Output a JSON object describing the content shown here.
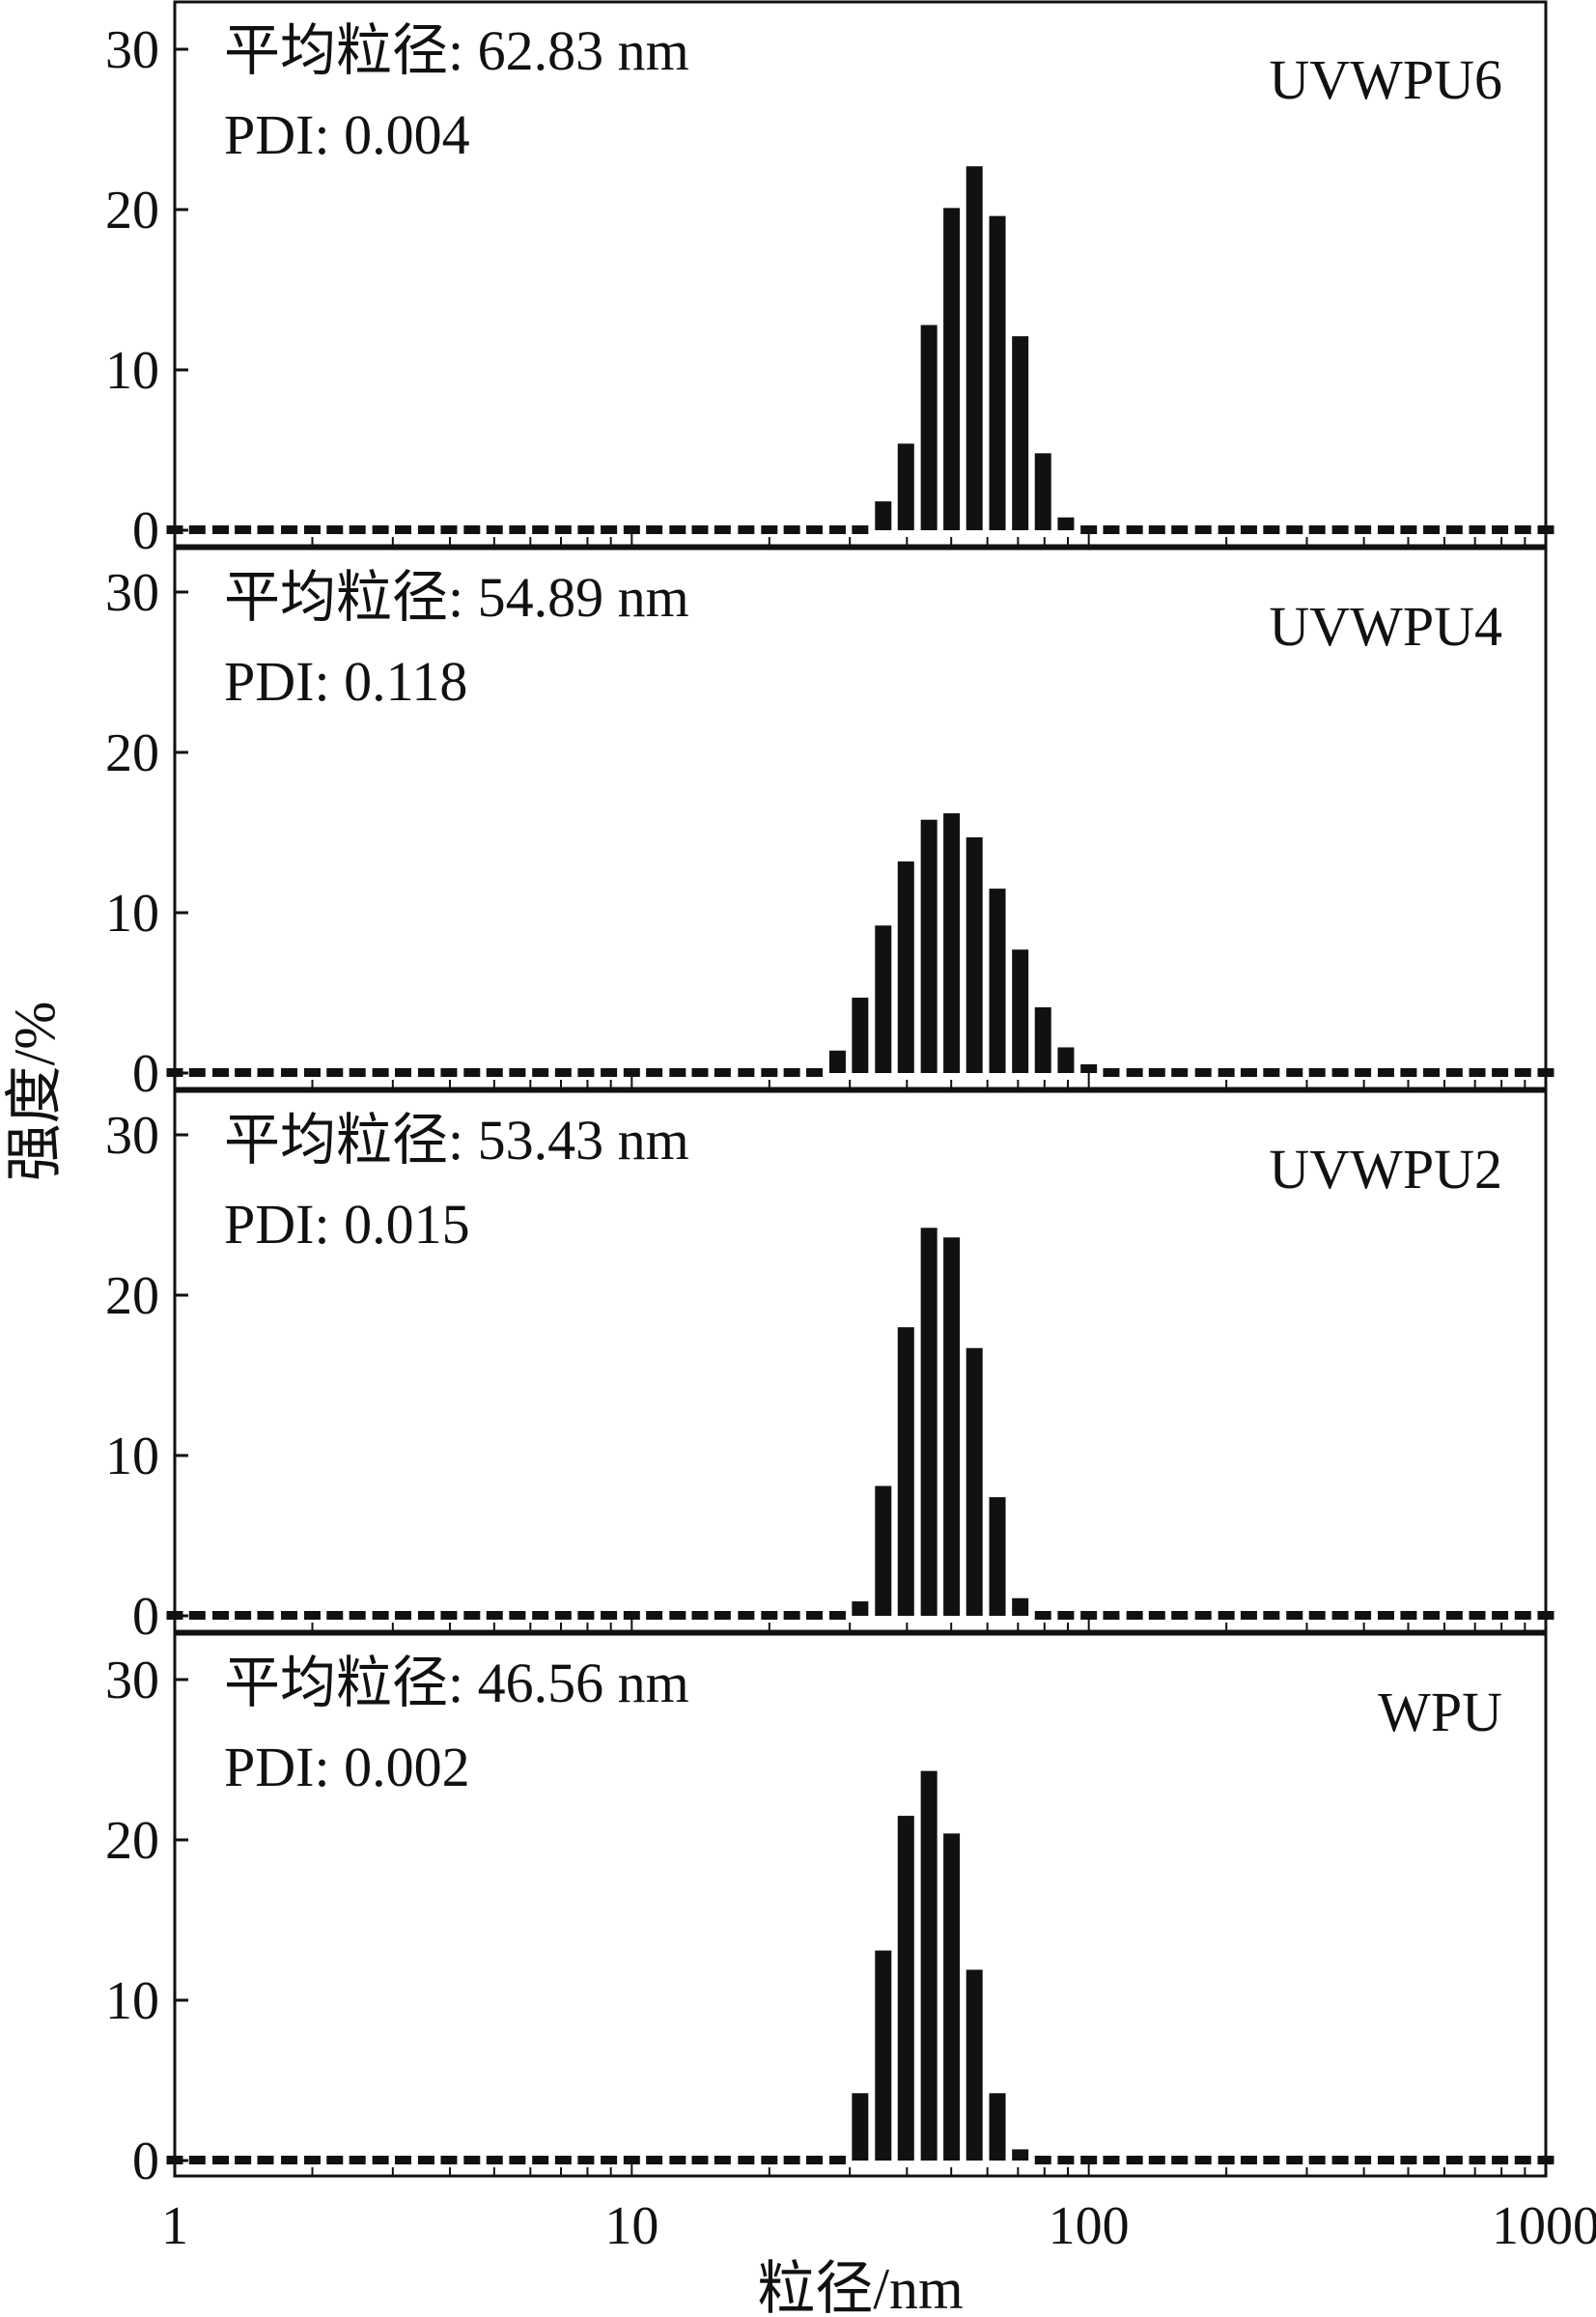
{
  "chart_data": {
    "type": "bar",
    "x_scale": "log",
    "xlim": [
      1,
      1000
    ],
    "x_ticks": [
      1,
      10,
      100,
      1000
    ],
    "x_tick_labels": [
      "1",
      "10",
      "100",
      "1000"
    ],
    "xlabel": "粒径/nm",
    "ylabel": "强度/%",
    "ylim": [
      0,
      30
    ],
    "y_ticks": [
      0,
      10,
      20,
      30
    ],
    "y_tick_labels": [
      "0",
      "10",
      "20",
      "30"
    ],
    "bar_color": "#111111",
    "x": [
      1.0,
      1.12,
      1.26,
      1.41,
      1.58,
      1.78,
      2.0,
      2.24,
      2.51,
      2.82,
      3.16,
      3.55,
      3.98,
      4.47,
      5.01,
      5.62,
      6.31,
      7.08,
      7.94,
      8.91,
      10.0,
      11.2,
      12.6,
      14.1,
      15.8,
      17.8,
      20.0,
      22.4,
      25.1,
      28.2,
      31.6,
      35.5,
      39.8,
      44.7,
      50.1,
      56.2,
      63.1,
      70.8,
      79.4,
      89.1,
      100,
      112,
      126,
      141,
      158,
      178,
      200,
      224,
      251,
      282,
      316,
      355,
      398,
      447,
      501,
      562,
      631,
      708,
      794,
      891,
      1000
    ],
    "panels": [
      {
        "label": "UVWPU6",
        "info": [
          "平均粒径: 62.83 nm",
          "PDI: 0.004"
        ],
        "values": [
          0,
          0,
          0,
          0,
          0,
          0,
          0,
          0,
          0,
          0,
          0,
          0,
          0,
          0,
          0,
          0,
          0,
          0,
          0,
          0,
          0,
          0,
          0,
          0,
          0,
          0,
          0,
          0,
          0,
          0,
          0,
          1.8,
          5.4,
          12.8,
          20.1,
          22.7,
          19.6,
          12.1,
          4.8,
          0.8,
          0,
          0,
          0,
          0,
          0,
          0,
          0,
          0,
          0,
          0,
          0,
          0,
          0,
          0,
          0,
          0,
          0,
          0,
          0,
          0,
          0
        ]
      },
      {
        "label": "UVWPU4",
        "info": [
          "平均粒径: 54.89 nm",
          "PDI: 0.118"
        ],
        "values": [
          0,
          0,
          0,
          0,
          0,
          0,
          0,
          0,
          0,
          0,
          0,
          0,
          0,
          0,
          0,
          0,
          0,
          0,
          0,
          0,
          0,
          0,
          0,
          0,
          0,
          0,
          0,
          0,
          0,
          1.4,
          4.7,
          9.2,
          13.2,
          15.8,
          16.2,
          14.7,
          11.5,
          7.7,
          4.1,
          1.6,
          0.3,
          0,
          0,
          0,
          0,
          0,
          0,
          0,
          0,
          0,
          0,
          0,
          0,
          0,
          0,
          0,
          0,
          0,
          0,
          0,
          0
        ]
      },
      {
        "label": "UVWPU2",
        "info": [
          "平均粒径: 53.43 nm",
          "PDI: 0.015"
        ],
        "values": [
          0,
          0,
          0,
          0,
          0,
          0,
          0,
          0,
          0,
          0,
          0,
          0,
          0,
          0,
          0,
          0,
          0,
          0,
          0,
          0,
          0,
          0,
          0,
          0,
          0,
          0,
          0,
          0,
          0,
          0,
          0.9,
          8.1,
          18.0,
          24.2,
          23.6,
          16.7,
          7.4,
          1.1,
          0,
          0,
          0,
          0,
          0,
          0,
          0,
          0,
          0,
          0,
          0,
          0,
          0,
          0,
          0,
          0,
          0,
          0,
          0,
          0,
          0,
          0,
          0
        ]
      },
      {
        "label": "WPU",
        "info": [
          "平均粒径: 46.56 nm",
          "PDI: 0.002"
        ],
        "values": [
          0,
          0,
          0,
          0,
          0,
          0,
          0,
          0,
          0,
          0,
          0,
          0,
          0,
          0,
          0,
          0,
          0,
          0,
          0,
          0,
          0,
          0,
          0,
          0,
          0,
          0,
          0,
          0,
          0,
          0,
          4.2,
          13.1,
          21.5,
          24.3,
          20.4,
          11.9,
          4.2,
          0.7,
          0,
          0,
          0,
          0,
          0,
          0,
          0,
          0,
          0,
          0,
          0,
          0,
          0,
          0,
          0,
          0,
          0,
          0,
          0,
          0,
          0,
          0,
          0
        ]
      }
    ]
  }
}
